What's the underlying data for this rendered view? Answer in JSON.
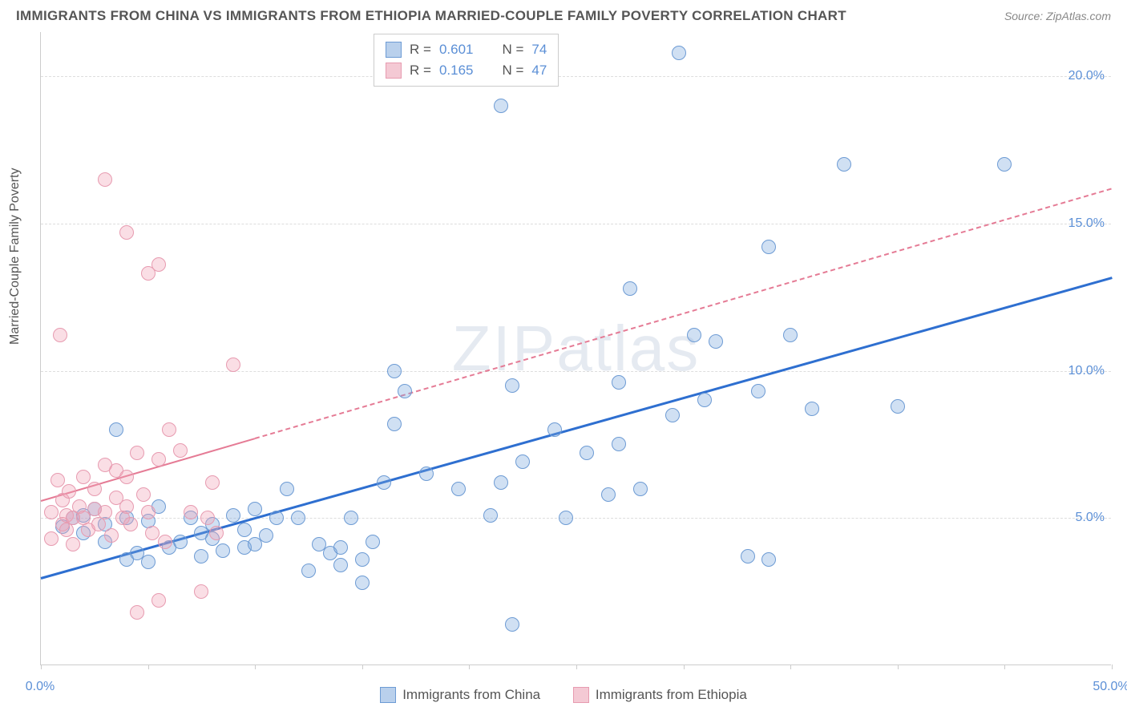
{
  "title": "IMMIGRANTS FROM CHINA VS IMMIGRANTS FROM ETHIOPIA MARRIED-COUPLE FAMILY POVERTY CORRELATION CHART",
  "source": "Source: ZipAtlas.com",
  "watermark": "ZIPatlas",
  "ylabel": "Married-Couple Family Poverty",
  "chart": {
    "type": "scatter",
    "xlim": [
      0,
      50
    ],
    "ylim": [
      0,
      21.5
    ],
    "xtick_positions": [
      0,
      5,
      10,
      15,
      20,
      25,
      30,
      35,
      40,
      45,
      50
    ],
    "xtick_labels": {
      "0": "0.0%",
      "50": "50.0%"
    },
    "ytick_positions": [
      5,
      10,
      15,
      20
    ],
    "ytick_labels": {
      "5": "5.0%",
      "10": "10.0%",
      "15": "15.0%",
      "20": "20.0%"
    },
    "grid_color": "#dddddd",
    "background_color": "#ffffff",
    "axis_color": "#cccccc",
    "tick_label_color": "#5b8fd6",
    "label_color": "#555555",
    "label_fontsize": 16,
    "tick_fontsize": 16,
    "marker_radius": 9,
    "marker_stroke_width": 1.5,
    "series": [
      {
        "name": "Immigrants from China",
        "fill_color": "rgba(120,165,220,0.35)",
        "stroke_color": "#6d9bd4",
        "swatch_fill": "#b9d0ec",
        "swatch_stroke": "#6d9bd4",
        "r": "0.601",
        "n": "74",
        "trend": {
          "x1": 0,
          "y1": 3.0,
          "x2": 50,
          "y2": 13.2,
          "color": "#2e6fd0",
          "width": 3,
          "dash_from_x": 50,
          "style": "solid"
        },
        "points": [
          [
            1.0,
            4.7
          ],
          [
            1.5,
            5.0
          ],
          [
            2.0,
            5.1
          ],
          [
            2.0,
            4.5
          ],
          [
            2.5,
            5.3
          ],
          [
            3.0,
            4.8
          ],
          [
            3.0,
            4.2
          ],
          [
            3.5,
            8.0
          ],
          [
            4.0,
            5.0
          ],
          [
            4.0,
            3.6
          ],
          [
            4.5,
            3.8
          ],
          [
            5.0,
            4.9
          ],
          [
            5.0,
            3.5
          ],
          [
            5.5,
            5.4
          ],
          [
            6.0,
            4.0
          ],
          [
            6.5,
            4.2
          ],
          [
            7.0,
            5.0
          ],
          [
            7.5,
            3.7
          ],
          [
            7.5,
            4.5
          ],
          [
            8.0,
            4.8
          ],
          [
            8.0,
            4.3
          ],
          [
            8.5,
            3.9
          ],
          [
            9.0,
            5.1
          ],
          [
            9.5,
            4.0
          ],
          [
            9.5,
            4.6
          ],
          [
            10.0,
            4.1
          ],
          [
            10.0,
            5.3
          ],
          [
            10.5,
            4.4
          ],
          [
            11.0,
            5.0
          ],
          [
            11.5,
            6.0
          ],
          [
            12.0,
            5.0
          ],
          [
            12.5,
            3.2
          ],
          [
            13.0,
            4.1
          ],
          [
            13.5,
            3.8
          ],
          [
            14.0,
            4.0
          ],
          [
            14.0,
            3.4
          ],
          [
            14.5,
            5.0
          ],
          [
            15.0,
            3.6
          ],
          [
            15.0,
            2.8
          ],
          [
            15.5,
            4.2
          ],
          [
            16.0,
            6.2
          ],
          [
            16.5,
            8.2
          ],
          [
            16.5,
            10.0
          ],
          [
            17.0,
            9.3
          ],
          [
            18.0,
            6.5
          ],
          [
            19.5,
            6.0
          ],
          [
            21.0,
            5.1
          ],
          [
            21.5,
            6.2
          ],
          [
            22.0,
            9.5
          ],
          [
            22.0,
            1.4
          ],
          [
            22.5,
            6.9
          ],
          [
            21.5,
            19.0
          ],
          [
            24.0,
            8.0
          ],
          [
            24.5,
            5.0
          ],
          [
            25.5,
            7.2
          ],
          [
            26.5,
            5.8
          ],
          [
            27.0,
            7.5
          ],
          [
            27.0,
            9.6
          ],
          [
            27.5,
            12.8
          ],
          [
            28.0,
            6.0
          ],
          [
            29.5,
            8.5
          ],
          [
            29.8,
            20.8
          ],
          [
            30.5,
            11.2
          ],
          [
            31.0,
            9.0
          ],
          [
            31.5,
            11.0
          ],
          [
            33.0,
            3.7
          ],
          [
            34.0,
            3.6
          ],
          [
            34.0,
            14.2
          ],
          [
            35.0,
            11.2
          ],
          [
            36.0,
            8.7
          ],
          [
            37.5,
            17.0
          ],
          [
            40.0,
            8.8
          ],
          [
            45.0,
            17.0
          ],
          [
            33.5,
            9.3
          ]
        ]
      },
      {
        "name": "Immigrants from Ethiopia",
        "fill_color": "rgba(240,160,180,0.35)",
        "stroke_color": "#e79bb0",
        "swatch_fill": "#f4c9d4",
        "swatch_stroke": "#e79bb0",
        "r": "0.165",
        "n": "47",
        "trend": {
          "x1": 0,
          "y1": 5.6,
          "x2": 50,
          "y2": 16.2,
          "color": "#e57b95",
          "width": 2.5,
          "dash_from_x": 10,
          "style": "solid-then-dashed"
        },
        "points": [
          [
            0.5,
            4.3
          ],
          [
            0.5,
            5.2
          ],
          [
            0.8,
            6.3
          ],
          [
            0.9,
            11.2
          ],
          [
            1.0,
            5.6
          ],
          [
            1.0,
            4.8
          ],
          [
            1.2,
            5.1
          ],
          [
            1.2,
            4.6
          ],
          [
            1.3,
            5.9
          ],
          [
            1.5,
            5.0
          ],
          [
            1.5,
            4.1
          ],
          [
            1.8,
            5.4
          ],
          [
            2.0,
            6.4
          ],
          [
            2.0,
            5.0
          ],
          [
            2.2,
            4.6
          ],
          [
            2.5,
            5.3
          ],
          [
            2.5,
            6.0
          ],
          [
            2.7,
            4.8
          ],
          [
            3.0,
            5.2
          ],
          [
            3.0,
            6.8
          ],
          [
            3.0,
            16.5
          ],
          [
            3.3,
            4.4
          ],
          [
            3.5,
            5.7
          ],
          [
            3.5,
            6.6
          ],
          [
            3.8,
            5.0
          ],
          [
            4.0,
            6.4
          ],
          [
            4.0,
            14.7
          ],
          [
            4.0,
            5.4
          ],
          [
            4.2,
            4.8
          ],
          [
            4.5,
            7.2
          ],
          [
            4.5,
            1.8
          ],
          [
            4.8,
            5.8
          ],
          [
            5.0,
            13.3
          ],
          [
            5.0,
            5.2
          ],
          [
            5.2,
            4.5
          ],
          [
            5.5,
            13.6
          ],
          [
            5.5,
            2.2
          ],
          [
            5.5,
            7.0
          ],
          [
            5.8,
            4.2
          ],
          [
            6.0,
            8.0
          ],
          [
            6.5,
            7.3
          ],
          [
            7.0,
            5.2
          ],
          [
            7.5,
            2.5
          ],
          [
            7.8,
            5.0
          ],
          [
            8.0,
            6.2
          ],
          [
            8.2,
            4.5
          ],
          [
            9.0,
            10.2
          ]
        ]
      }
    ]
  },
  "legend_top": {
    "r_label": "R =",
    "n_label": "N ="
  },
  "legend_bottom": [
    {
      "label": "Immigrants from China",
      "swatch_fill": "#b9d0ec",
      "swatch_stroke": "#6d9bd4"
    },
    {
      "label": "Immigrants from Ethiopia",
      "swatch_fill": "#f4c9d4",
      "swatch_stroke": "#e79bb0"
    }
  ]
}
